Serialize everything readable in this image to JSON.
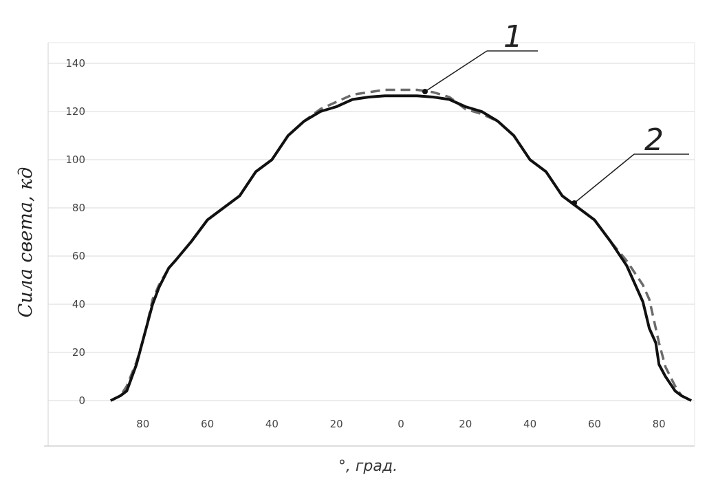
{
  "chart_data": {
    "type": "line",
    "xlabel": "°, град.",
    "ylabel": "Сила света, кд",
    "x_tick_labels": [
      "80",
      "60",
      "40",
      "20",
      "0",
      "20",
      "40",
      "60",
      "80"
    ],
    "ylim": [
      0,
      140
    ],
    "y_ticks": [
      0,
      20,
      40,
      60,
      80,
      100,
      120,
      140
    ],
    "grid": "horizontal",
    "x": [
      -90,
      -87,
      -85,
      -82,
      -80,
      -79,
      -77,
      -75,
      -72,
      -70,
      -65,
      -60,
      -55,
      -50,
      -45,
      -40,
      -35,
      -30,
      -25,
      -20,
      -15,
      -10,
      -5,
      0,
      5,
      10,
      15,
      20,
      25,
      30,
      35,
      40,
      45,
      50,
      55,
      60,
      65,
      70,
      75,
      77,
      79,
      80,
      82,
      85,
      87,
      90
    ],
    "series": [
      {
        "label": "1",
        "style": "dashed",
        "color": "#6b6b6b",
        "values": [
          0,
          2,
          6,
          16,
          25,
          30,
          42,
          48,
          55,
          58,
          66,
          75,
          80,
          85,
          95,
          100,
          110,
          116,
          121,
          124,
          127,
          128,
          129,
          129,
          129,
          128,
          126,
          121,
          119,
          116,
          110,
          100,
          95,
          85,
          80,
          75,
          66,
          58,
          48,
          42,
          30,
          24,
          14,
          6,
          2,
          0
        ]
      },
      {
        "label": "2",
        "style": "solid",
        "color": "#111111",
        "values": [
          0,
          2,
          4,
          15,
          25,
          30,
          40,
          47,
          55,
          58,
          66,
          75,
          80,
          85,
          95,
          100,
          110,
          116,
          120,
          122,
          125,
          126,
          126.5,
          126.5,
          126.5,
          126,
          125,
          122,
          120,
          116,
          110,
          100,
          95,
          85,
          80,
          75,
          66,
          56,
          41,
          30,
          24,
          15,
          10,
          4,
          2,
          0
        ]
      }
    ]
  }
}
